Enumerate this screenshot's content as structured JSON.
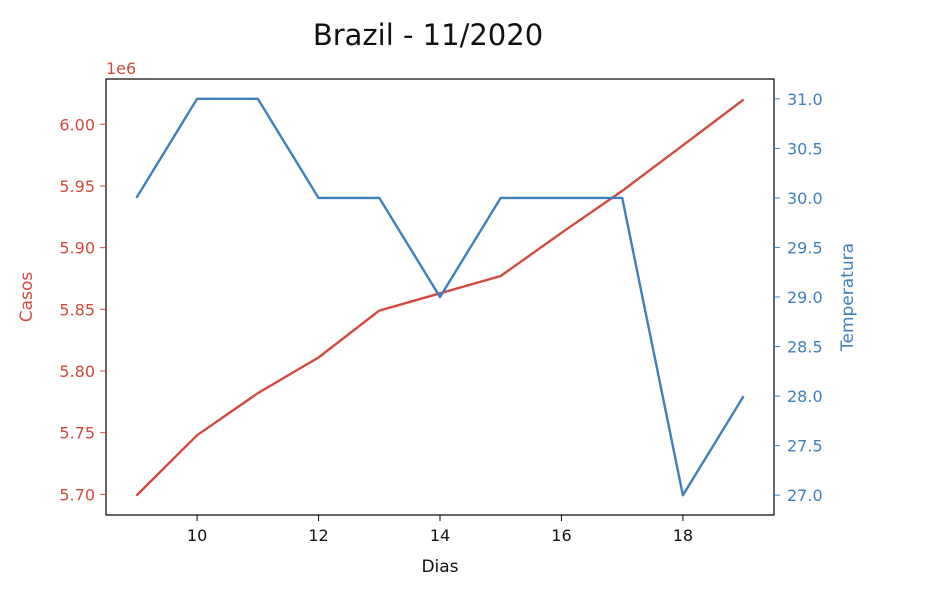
{
  "chart_data": {
    "type": "line",
    "title": "Brazil - 11/2020",
    "xlabel": "Dias",
    "xlim": [
      8.5,
      19.5
    ],
    "xticks": [
      10,
      12,
      14,
      16,
      18
    ],
    "left_axis": {
      "label": "Casos",
      "offset_text": "1e6",
      "color": "#d1493f",
      "ylim": [
        5.6833,
        6.0367
      ],
      "ticks": [
        5.7,
        5.75,
        5.8,
        5.85,
        5.9,
        5.95,
        6.0
      ],
      "tick_labels": [
        "5.70",
        "5.75",
        "5.80",
        "5.85",
        "5.90",
        "5.95",
        "6.00"
      ]
    },
    "right_axis": {
      "label": "Temperatura",
      "color": "#3f7fbf",
      "ylim": [
        26.8,
        31.2
      ],
      "ticks": [
        27.0,
        27.5,
        28.0,
        28.5,
        29.0,
        29.5,
        30.0,
        30.5,
        31.0
      ],
      "tick_labels": [
        "27.0",
        "27.5",
        "28.0",
        "28.5",
        "29.0",
        "29.5",
        "30.0",
        "30.5",
        "31.0"
      ]
    },
    "x": [
      9,
      10,
      11,
      12,
      13,
      14,
      15,
      16,
      17,
      18,
      19
    ],
    "series": [
      {
        "axis": "left",
        "color": "#d1493f",
        "values": [
          5.699,
          5.748,
          5.782,
          5.811,
          5.849,
          5.863,
          5.877,
          5.912,
          5.946,
          5.983,
          6.02
        ]
      },
      {
        "axis": "right",
        "color": "#3f7fbf",
        "values": [
          30,
          31,
          31,
          30,
          30,
          29,
          30,
          30,
          30,
          27,
          28
        ]
      }
    ],
    "grid": false
  }
}
